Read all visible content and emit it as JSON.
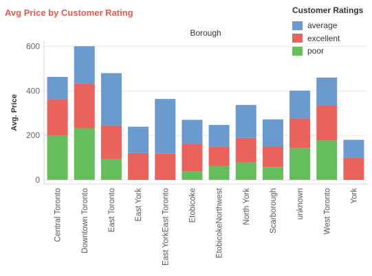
{
  "chart_data": {
    "type": "bar",
    "stacked": true,
    "title": "Avg Price by Customer Rating",
    "column_header": "Borough",
    "ylabel": "Avg. Price",
    "xlabel": "",
    "ylim": [
      0,
      620
    ],
    "yticks": [
      0,
      200,
      400,
      600
    ],
    "grid": "horizontal",
    "legend": {
      "title": "Customer Ratings",
      "placement": "top-right"
    },
    "categories": [
      "Central Toronto",
      "Downtown Toronto",
      "East Toronto",
      "East York",
      "East YorkEast Toronto",
      "Etobicoke",
      "EtobicokeNorthwest",
      "North York",
      "Scarborough",
      "unknown",
      "West Toronto",
      "York"
    ],
    "series": [
      {
        "name": "poor",
        "color": "#66bd5b",
        "values": [
          200,
          233,
          93,
          0,
          0,
          40,
          62,
          79,
          58,
          143,
          178,
          0
        ]
      },
      {
        "name": "excellent",
        "color": "#e9625b",
        "values": [
          163,
          200,
          152,
          121,
          118,
          122,
          88,
          110,
          93,
          133,
          157,
          100
        ]
      },
      {
        "name": "average",
        "color": "#6b9bce",
        "values": [
          100,
          168,
          235,
          118,
          246,
          108,
          97,
          148,
          121,
          125,
          125,
          80
        ]
      }
    ]
  }
}
